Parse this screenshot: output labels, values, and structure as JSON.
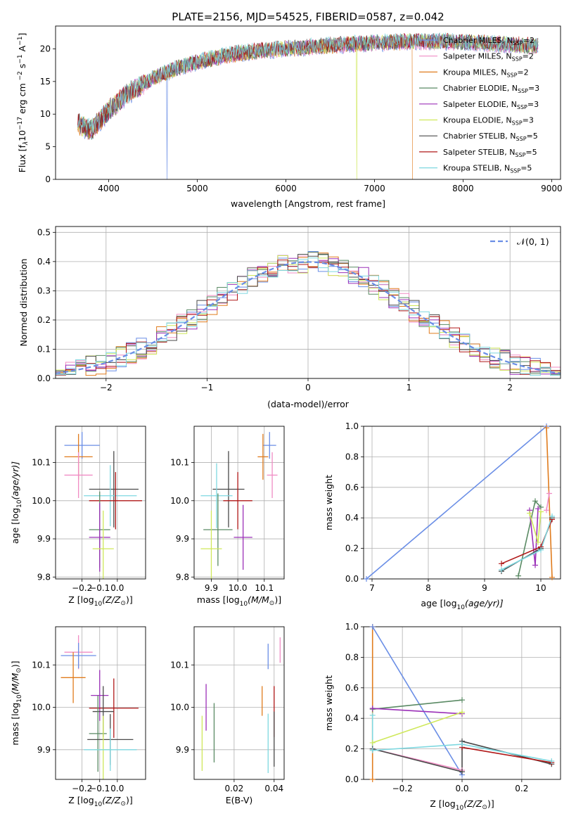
{
  "figure_title": "PLATE=2156, MJD=54525, FIBERID=0587, z=0.042",
  "colors": {
    "Chabrier MILES": "#6a8ee6",
    "Salpeter MILES": "#f08cc4",
    "Kroupa MILES": "#e07c1e",
    "Chabrier ELODIE": "#5a8a64",
    "Salpeter ELODIE": "#9b30b8",
    "Kroupa ELODIE": "#cfe85a",
    "Chabrier STELIB": "#4a4a4a",
    "Salpeter STELIB": "#b01818",
    "Kroupa STELIB": "#7ed8e0"
  },
  "chart_data": [
    {
      "id": "spectrum",
      "type": "line",
      "title": "PLATE=2156, MJD=54525, FIBERID=0587, z=0.042",
      "xlabel": "wavelength [Angstrom, rest frame]",
      "ylabel_main": "Flux [f",
      "ylabel_rest": "10",
      "ylabel_units": "erg cm",
      "xlim": [
        3400,
        9100
      ],
      "ylim": [
        0,
        23.5
      ],
      "xticks": [
        "4000",
        "5000",
        "6000",
        "7000",
        "8000",
        "9000"
      ],
      "yticks": [
        "0",
        "5",
        "10",
        "15",
        "20"
      ],
      "legend": [
        {
          "name": "Chabrier MILES, N",
          "sub": "SSP",
          "suffix": "=2"
        },
        {
          "name": "Salpeter MILES, N",
          "sub": "SSP",
          "suffix": "=2"
        },
        {
          "name": "Kroupa MILES, N",
          "sub": "SSP",
          "suffix": "=2"
        },
        {
          "name": "Chabrier ELODIE, N",
          "sub": "SSP",
          "suffix": "=3"
        },
        {
          "name": "Salpeter ELODIE, N",
          "sub": "SSP",
          "suffix": "=3"
        },
        {
          "name": "Kroupa ELODIE, N",
          "sub": "SSP",
          "suffix": "=3"
        },
        {
          "name": "Chabrier STELIB, N",
          "sub": "SSP",
          "suffix": "=5"
        },
        {
          "name": "Salpeter STELIB, N",
          "sub": "SSP",
          "suffix": "=5"
        },
        {
          "name": "Kroupa STELIB, N",
          "sub": "SSP",
          "suffix": "=5"
        }
      ],
      "continuum": {
        "x": [
          3650,
          3800,
          4000,
          4200,
          4500,
          4800,
          5100,
          5400,
          5700,
          6000,
          6300,
          6600,
          7000,
          7400,
          7800,
          8200,
          8600,
          8850
        ],
        "y": [
          8.5,
          7.5,
          10.5,
          13,
          15.5,
          17.2,
          18.3,
          19.2,
          19.7,
          20,
          20.3,
          20.6,
          20.9,
          21.1,
          21.1,
          20.9,
          20.6,
          20.3
        ]
      },
      "dips": [
        {
          "model": "Chabrier MILES",
          "x": 4660,
          "bottom": 0
        },
        {
          "model": "Kroupa ELODIE",
          "x": 6800,
          "bottom": 0
        },
        {
          "model": "Kroupa MILES",
          "x": 7430,
          "bottom": 0
        }
      ]
    },
    {
      "id": "residuals",
      "type": "histogram",
      "xlabel": "(data-model)/error",
      "ylabel": "Normed distribution",
      "xlim": [
        -2.5,
        2.5
      ],
      "ylim": [
        0,
        0.52
      ],
      "xticks": [
        "−2",
        "−1",
        "0",
        "1",
        "2"
      ],
      "yticks": [
        "0.0",
        "0.1",
        "0.2",
        "0.3",
        "0.4",
        "0.5"
      ],
      "bin_width": 0.1,
      "bin_start": -2.5,
      "legend_label": "𝒩(0, 1)",
      "gaussian": {
        "mu": 0,
        "sigma": 1
      }
    },
    {
      "id": "age_vs_Z",
      "type": "errorbar",
      "xlabel_pre": "Z [log",
      "xlabel_sub": "10",
      "xlabel_post": "(Z/Z",
      "xlabel_end": ")]",
      "ylabel_pre": "age  [log",
      "ylabel_sub": "10",
      "ylabel_post": "(age/yr)]",
      "xlim": [
        -0.35,
        0.16
      ],
      "ylim": [
        9.795,
        10.195
      ],
      "xticks": [
        {
          "v": -0.2,
          "t": "−0.2"
        },
        {
          "v": -0.1,
          "t": "−0.1"
        },
        {
          "v": 0.0,
          "t": "0.0"
        }
      ],
      "yticks": [
        {
          "v": 9.8,
          "t": "9.8"
        },
        {
          "v": 9.9,
          "t": "9.9"
        },
        {
          "v": 10.0,
          "t": "10.0"
        },
        {
          "v": 10.1,
          "t": "10.1"
        }
      ],
      "points": [
        {
          "model": "Chabrier MILES",
          "x": -0.2,
          "xerr": 0.1,
          "y": 10.145,
          "yerr": 0.035
        },
        {
          "model": "Kroupa MILES",
          "x": -0.22,
          "xerr": 0.08,
          "y": 10.115,
          "yerr": 0.06
        },
        {
          "model": "Salpeter MILES",
          "x": -0.22,
          "xerr": 0.08,
          "y": 10.067,
          "yerr": 0.06
        },
        {
          "model": "Chabrier STELIB",
          "x": -0.02,
          "xerr": 0.14,
          "y": 10.03,
          "yerr": 0.1
        },
        {
          "model": "Kroupa STELIB",
          "x": -0.04,
          "xerr": 0.15,
          "y": 10.013,
          "yerr": 0.08
        },
        {
          "model": "Salpeter STELIB",
          "x": -0.01,
          "xerr": 0.15,
          "y": 10.0,
          "yerr": 0.075
        },
        {
          "model": "Chabrier ELODIE",
          "x": -0.1,
          "xerr": 0.06,
          "y": 9.924,
          "yerr": 0.1
        },
        {
          "model": "Salpeter ELODIE",
          "x": -0.1,
          "xerr": 0.06,
          "y": 9.904,
          "yerr": 0.09
        },
        {
          "model": "Kroupa ELODIE",
          "x": -0.08,
          "xerr": 0.06,
          "y": 9.874,
          "yerr": 0.1
        }
      ]
    },
    {
      "id": "age_vs_mass",
      "type": "errorbar",
      "xlabel_pre": "mass [log",
      "xlabel_sub": "10",
      "xlabel_post": "(M/M",
      "xlabel_end": ")]",
      "xlim": [
        9.835,
        10.175
      ],
      "ylim": [
        9.795,
        10.195
      ],
      "xticks": [
        {
          "v": 9.9,
          "t": "9.9"
        },
        {
          "v": 10.0,
          "t": "10.0"
        },
        {
          "v": 10.1,
          "t": "10.1"
        }
      ],
      "yticks": [
        {
          "v": 9.8,
          "t": "9.8"
        },
        {
          "v": 9.9,
          "t": "9.9"
        },
        {
          "v": 10.0,
          "t": "10.0"
        },
        {
          "v": 10.1,
          "t": "10.1"
        }
      ],
      "points": [
        {
          "model": "Chabrier MILES",
          "x": 10.12,
          "xerr": 0.025,
          "y": 10.145,
          "yerr": 0.035
        },
        {
          "model": "Kroupa MILES",
          "x": 10.095,
          "xerr": 0.02,
          "y": 10.115,
          "yerr": 0.06
        },
        {
          "model": "Salpeter MILES",
          "x": 10.13,
          "xerr": 0.02,
          "y": 10.067,
          "yerr": 0.06
        },
        {
          "model": "Chabrier STELIB",
          "x": 9.965,
          "xerr": 0.06,
          "y": 10.03,
          "yerr": 0.1
        },
        {
          "model": "Kroupa STELIB",
          "x": 9.92,
          "xerr": 0.06,
          "y": 10.013,
          "yerr": 0.085
        },
        {
          "model": "Salpeter STELIB",
          "x": 10.0,
          "xerr": 0.055,
          "y": 10.0,
          "yerr": 0.075
        },
        {
          "model": "Chabrier ELODIE",
          "x": 9.925,
          "xerr": 0.055,
          "y": 9.924,
          "yerr": 0.095
        },
        {
          "model": "Salpeter ELODIE",
          "x": 10.02,
          "xerr": 0.035,
          "y": 9.904,
          "yerr": 0.085
        },
        {
          "model": "Kroupa ELODIE",
          "x": 9.9,
          "xerr": 0.04,
          "y": 9.874,
          "yerr": 0.1
        }
      ]
    },
    {
      "id": "weight_vs_age",
      "type": "line",
      "xlabel_pre": "age  [log",
      "xlabel_sub": "10",
      "xlabel_post": "(age/yr)]",
      "ylabel": "mass weight",
      "xlim": [
        6.85,
        10.35
      ],
      "ylim": [
        0,
        1.0
      ],
      "xticks": [
        {
          "v": 7,
          "t": "7"
        },
        {
          "v": 8,
          "t": "8"
        },
        {
          "v": 9,
          "t": "9"
        },
        {
          "v": 10,
          "t": "10"
        }
      ],
      "yticks": [
        {
          "v": 0,
          "t": "0.0"
        },
        {
          "v": 0.2,
          "t": "0.2"
        },
        {
          "v": 0.4,
          "t": "0.4"
        },
        {
          "v": 0.6,
          "t": "0.6"
        },
        {
          "v": 0.8,
          "t": "0.8"
        },
        {
          "v": 1.0,
          "t": "1.0"
        }
      ],
      "series": [
        {
          "model": "Chabrier MILES",
          "x": [
            6.9,
            10.1
          ],
          "y": [
            0.0,
            1.0
          ]
        },
        {
          "model": "Kroupa MILES",
          "x": [
            10.1,
            10.2
          ],
          "y": [
            0.99,
            0.01
          ]
        },
        {
          "model": "Salpeter MILES",
          "x": [
            10.1,
            10.15
          ],
          "y": [
            0.45,
            0.56
          ]
        },
        {
          "model": "Chabrier ELODIE",
          "x": [
            9.6,
            9.9,
            10.0
          ],
          "y": [
            0.02,
            0.51,
            0.47
          ]
        },
        {
          "model": "Salpeter ELODIE",
          "x": [
            9.8,
            9.9,
            9.95
          ],
          "y": [
            0.45,
            0.09,
            0.46
          ]
        },
        {
          "model": "Kroupa ELODIE",
          "x": [
            9.8,
            9.95,
            10.0
          ],
          "y": [
            0.43,
            0.24,
            0.44
          ]
        },
        {
          "model": "Chabrier STELIB",
          "x": [
            9.3,
            10.0,
            10.2
          ],
          "y": [
            0.05,
            0.2,
            0.4
          ]
        },
        {
          "model": "Salpeter STELIB",
          "x": [
            9.3,
            10.0,
            10.2
          ],
          "y": [
            0.1,
            0.21,
            0.39
          ]
        },
        {
          "model": "Kroupa STELIB",
          "x": [
            9.3,
            10.0,
            10.2
          ],
          "y": [
            0.06,
            0.19,
            0.41
          ]
        }
      ]
    },
    {
      "id": "mass_vs_Z",
      "type": "errorbar",
      "xlabel_pre": "Z [log",
      "xlabel_sub": "10",
      "xlabel_post": "(Z/Z",
      "xlabel_end": ")]",
      "ylabel_pre": "mass [log",
      "ylabel_sub": "10",
      "ylabel_post": "(M/M",
      "ylabel_end": ")]",
      "xlim": [
        -0.35,
        0.16
      ],
      "ylim": [
        9.83,
        10.19
      ],
      "xticks": [
        {
          "v": -0.2,
          "t": "−0.2"
        },
        {
          "v": -0.1,
          "t": "−0.1"
        },
        {
          "v": 0.0,
          "t": "0.0"
        }
      ],
      "yticks": [
        {
          "v": 9.9,
          "t": "9.9"
        },
        {
          "v": 10.0,
          "t": "10.0"
        },
        {
          "v": 10.1,
          "t": "10.1"
        }
      ],
      "points": [
        {
          "model": "Salpeter MILES",
          "x": -0.22,
          "xerr": 0.08,
          "y": 10.13,
          "yerr": 0.04
        },
        {
          "model": "Chabrier MILES",
          "x": -0.22,
          "xerr": 0.1,
          "y": 10.122,
          "yerr": 0.03
        },
        {
          "model": "Kroupa MILES",
          "x": -0.25,
          "xerr": 0.07,
          "y": 10.07,
          "yerr": 0.06
        },
        {
          "model": "Salpeter ELODIE",
          "x": -0.1,
          "xerr": 0.05,
          "y": 10.028,
          "yerr": 0.06
        },
        {
          "model": "Salpeter STELIB",
          "x": -0.02,
          "xerr": 0.14,
          "y": 9.998,
          "yerr": 0.07
        },
        {
          "model": "Chabrier STELIB",
          "x": -0.08,
          "xerr": 0.06,
          "y": 9.99,
          "yerr": 0.06
        },
        {
          "model": "Chabrier ELODIE",
          "x": -0.11,
          "xerr": 0.05,
          "y": 9.938,
          "yerr": 0.09
        },
        {
          "model": "Chabrier STELIB",
          "x": -0.04,
          "xerr": 0.13,
          "y": 9.924,
          "yerr": 0.06
        },
        {
          "model": "Kroupa ELODIE",
          "x": -0.08,
          "xerr": 0.05,
          "y": 9.9,
          "yerr": 0.08
        },
        {
          "model": "Kroupa STELIB",
          "x": -0.04,
          "xerr": 0.15,
          "y": 9.9,
          "yerr": 0.05
        }
      ]
    },
    {
      "id": "mass_vs_EBV",
      "type": "errorbar",
      "xlabel": "E(B-V)",
      "xlim": [
        0.0,
        0.045
      ],
      "ylim": [
        9.83,
        10.19
      ],
      "xticks": [
        {
          "v": 0.02,
          "t": "0.02"
        },
        {
          "v": 0.04,
          "t": "0.04"
        }
      ],
      "yticks": [
        {
          "v": 9.9,
          "t": "9.9"
        },
        {
          "v": 10.0,
          "t": "10.0"
        },
        {
          "v": 10.1,
          "t": "10.1"
        }
      ],
      "points": [
        {
          "model": "Kroupa ELODIE",
          "x": 0.004,
          "y": 9.915,
          "yerr": 0.065
        },
        {
          "model": "Salpeter ELODIE",
          "x": 0.006,
          "y": 10.0,
          "yerr": 0.055
        },
        {
          "model": "Chabrier ELODIE",
          "x": 0.01,
          "y": 9.94,
          "yerr": 0.07
        },
        {
          "model": "Kroupa MILES",
          "x": 0.034,
          "y": 10.015,
          "yerr": 0.035
        },
        {
          "model": "Kroupa STELIB",
          "x": 0.037,
          "y": 9.915,
          "yerr": 0.07
        },
        {
          "model": "Chabrier MILES",
          "x": 0.037,
          "y": 10.12,
          "yerr": 0.03
        },
        {
          "model": "Salpeter STELIB",
          "x": 0.04,
          "y": 9.99,
          "yerr": 0.06
        },
        {
          "model": "Chabrier STELIB",
          "x": 0.04,
          "y": 9.925,
          "yerr": 0.065
        },
        {
          "model": "Salpeter MILES",
          "x": 0.043,
          "y": 10.135,
          "yerr": 0.03
        }
      ]
    },
    {
      "id": "weight_vs_Z",
      "type": "line",
      "xlabel_pre": "Z [log",
      "xlabel_sub": "10",
      "xlabel_post": "(Z/Z",
      "xlabel_end": ")]",
      "ylabel": "mass weight",
      "xlim": [
        -0.33,
        0.33
      ],
      "ylim": [
        0,
        1.0
      ],
      "xticks": [
        {
          "v": -0.2,
          "t": "−0.2"
        },
        {
          "v": 0.0,
          "t": "0.0"
        },
        {
          "v": 0.2,
          "t": "0.2"
        }
      ],
      "yticks": [
        {
          "v": 0,
          "t": "0.0"
        },
        {
          "v": 0.2,
          "t": "0.2"
        },
        {
          "v": 0.4,
          "t": "0.4"
        },
        {
          "v": 0.6,
          "t": "0.6"
        },
        {
          "v": 0.8,
          "t": "0.8"
        },
        {
          "v": 1.0,
          "t": "1.0"
        }
      ],
      "series": [
        {
          "model": "Kroupa MILES",
          "x": [
            -0.3,
            -0.3
          ],
          "y": [
            1.0,
            0.0
          ]
        },
        {
          "model": "Chabrier MILES",
          "x": [
            -0.3,
            0.0
          ],
          "y": [
            1.0,
            0.03
          ]
        },
        {
          "model": "Salpeter MILES",
          "x": [
            -0.3,
            0.0
          ],
          "y": [
            0.2,
            0.06
          ]
        },
        {
          "model": "Chabrier ELODIE",
          "x": [
            -0.3,
            0.0
          ],
          "y": [
            0.46,
            0.52
          ]
        },
        {
          "model": "Salpeter ELODIE",
          "x": [
            -0.3,
            0.0
          ],
          "y": [
            0.465,
            0.43
          ]
        },
        {
          "model": "Kroupa ELODIE",
          "x": [
            -0.3,
            0.0
          ],
          "y": [
            0.24,
            0.44
          ]
        },
        {
          "model": "Chabrier STELIB",
          "x": [
            -0.3,
            0.0,
            0.0,
            0.3
          ],
          "y": [
            0.2,
            0.05,
            0.25,
            0.1
          ]
        },
        {
          "model": "Salpeter STELIB",
          "x": [
            0.0,
            0.3
          ],
          "y": [
            0.21,
            0.11
          ]
        },
        {
          "model": "Kroupa STELIB",
          "x": [
            -0.3,
            -0.3,
            0.0,
            0.3
          ],
          "y": [
            0.42,
            0.19,
            0.23,
            0.12
          ]
        }
      ]
    }
  ]
}
